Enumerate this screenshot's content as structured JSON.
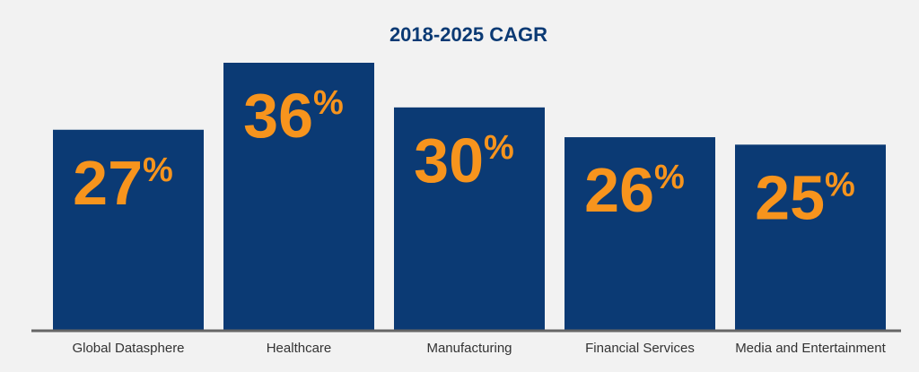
{
  "colors": {
    "background": "#f2f2f2",
    "bar": "#0b3a74",
    "label": "#f7941d",
    "title": "#0b3a74",
    "axis": "#666666"
  },
  "chart_data": {
    "type": "bar",
    "title": "2018-2025 CAGR",
    "categories": [
      "Global Datasphere",
      "Healthcare",
      "Manufacturing",
      "Financial Services",
      "Media and Entertainment"
    ],
    "values": [
      27,
      36,
      30,
      26,
      25
    ],
    "data_labels": [
      "27",
      "36",
      "30",
      "26",
      "25"
    ],
    "unit": "%",
    "xlabel": "",
    "ylabel": "",
    "ylim": [
      0,
      40
    ],
    "grid": false,
    "legend": "none"
  }
}
